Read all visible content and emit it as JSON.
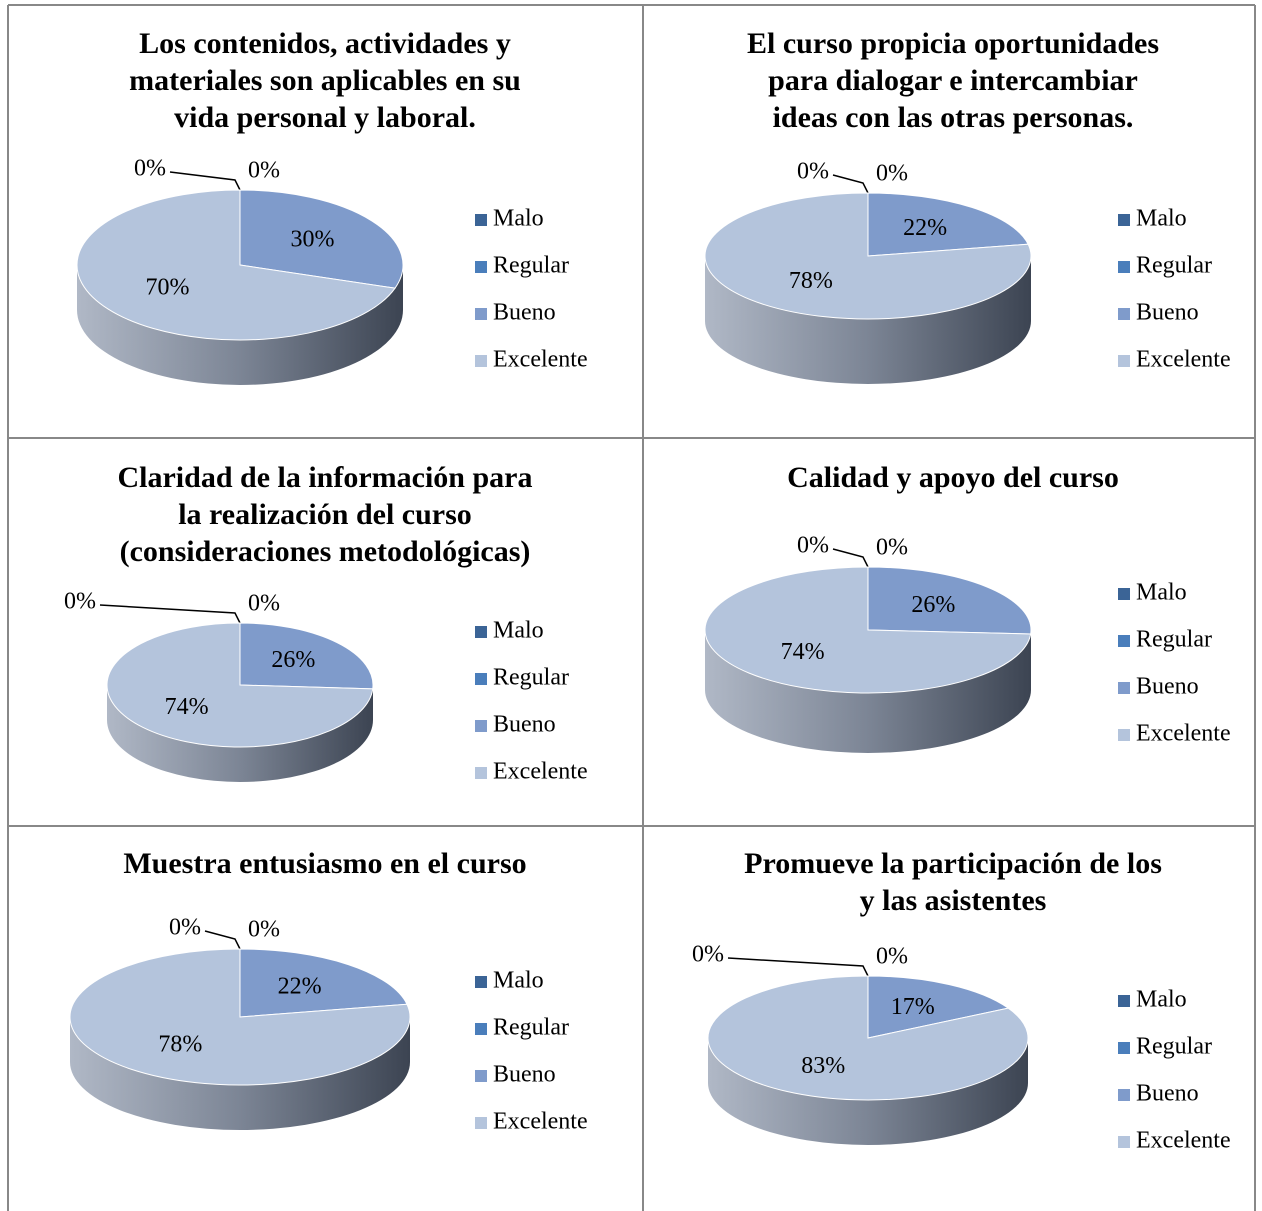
{
  "chart_data": [
    {
      "type": "pie",
      "title": [
        "Los contenidos, actividades y",
        "materiales son aplicables en su",
        "vida personal y laboral."
      ],
      "categories": [
        "Malo",
        "Regular",
        "Bueno",
        "Excelente"
      ],
      "values": [
        0,
        0,
        30,
        70
      ],
      "value_labels": [
        "0%",
        "0%",
        "30%",
        "70%"
      ],
      "colors": [
        "#3b6496",
        "#4a7ebb",
        "#7f9bcb",
        "#b4c4dc"
      ],
      "legend": "right"
    },
    {
      "type": "pie",
      "title": [
        "El curso propicia oportunidades",
        "para dialogar e intercambiar",
        "ideas con las otras personas."
      ],
      "categories": [
        "Malo",
        "Regular",
        "Bueno",
        "Excelente"
      ],
      "values": [
        0,
        0,
        22,
        78
      ],
      "value_labels": [
        "0%",
        "0%",
        "22%",
        "78%"
      ],
      "colors": [
        "#3b6496",
        "#4a7ebb",
        "#7f9bcb",
        "#b4c4dc"
      ],
      "legend": "right"
    },
    {
      "type": "pie",
      "title": [
        "Claridad de la información para",
        "la realización del curso",
        "(consideraciones metodológicas)"
      ],
      "categories": [
        "Malo",
        "Regular",
        "Bueno",
        "Excelente"
      ],
      "values": [
        0,
        0,
        26,
        74
      ],
      "value_labels": [
        "0%",
        "0%",
        "26%",
        "74%"
      ],
      "colors": [
        "#3b6496",
        "#4a7ebb",
        "#7f9bcb",
        "#b4c4dc"
      ],
      "legend": "right"
    },
    {
      "type": "pie",
      "title": [
        "Calidad y apoyo del curso"
      ],
      "categories": [
        "Malo",
        "Regular",
        "Bueno",
        "Excelente"
      ],
      "values": [
        0,
        0,
        26,
        74
      ],
      "value_labels": [
        "0%",
        "0%",
        "26%",
        "74%"
      ],
      "colors": [
        "#3b6496",
        "#4a7ebb",
        "#7f9bcb",
        "#b4c4dc"
      ],
      "legend": "right"
    },
    {
      "type": "pie",
      "title": [
        "Muestra entusiasmo en el curso"
      ],
      "categories": [
        "Malo",
        "Regular",
        "Bueno",
        "Excelente"
      ],
      "values": [
        0,
        0,
        22,
        78
      ],
      "value_labels": [
        "0%",
        "0%",
        "22%",
        "78%"
      ],
      "colors": [
        "#3b6496",
        "#4a7ebb",
        "#7f9bcb",
        "#b4c4dc"
      ],
      "legend": "right"
    },
    {
      "type": "pie",
      "title": [
        "Promueve la participación de los",
        "y las asistentes"
      ],
      "categories": [
        "Malo",
        "Regular",
        "Bueno",
        "Excelente"
      ],
      "values": [
        0,
        0,
        17,
        83
      ],
      "value_labels": [
        "0%",
        "0%",
        "17%",
        "83%"
      ],
      "colors": [
        "#3b6496",
        "#4a7ebb",
        "#7f9bcb",
        "#b4c4dc"
      ],
      "legend": "right"
    }
  ]
}
